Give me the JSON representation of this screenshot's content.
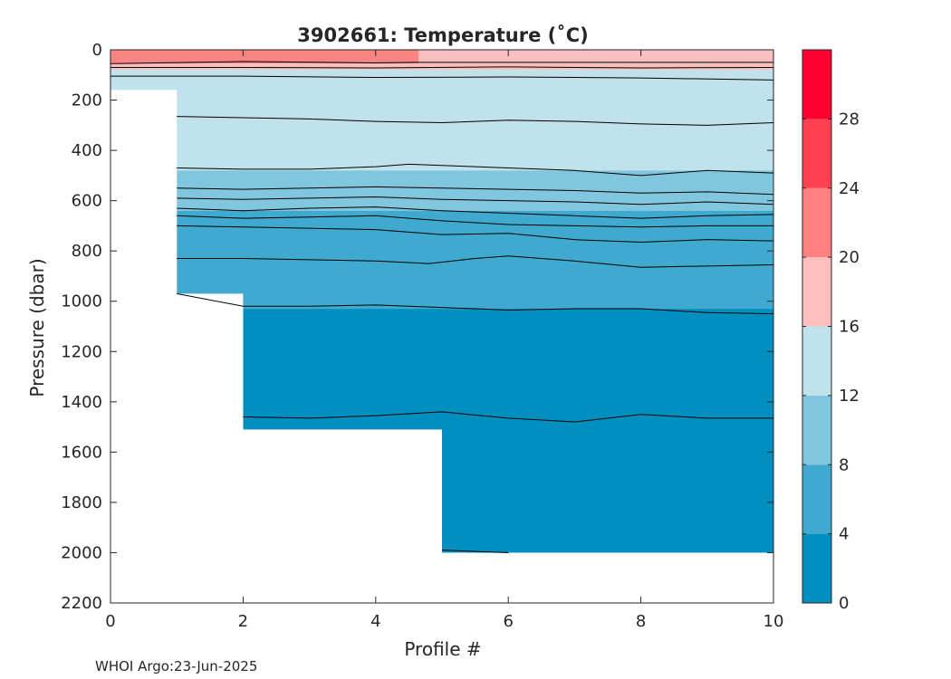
{
  "chart_data": {
    "type": "heatmap",
    "title": "3902661:  Temperature (˚C)",
    "xlabel": "Profile #",
    "ylabel": "Pressure (dbar)",
    "xlim": [
      0,
      10
    ],
    "ylim": [
      2200,
      0
    ],
    "y_reversed": true,
    "x_ticks": [
      0,
      2,
      4,
      6,
      8,
      10
    ],
    "x_tick_labels": [
      "0",
      "2",
      "4",
      "6",
      "8",
      "10"
    ],
    "y_ticks": [
      0,
      200,
      400,
      600,
      800,
      1000,
      1200,
      1400,
      1600,
      1800,
      2000,
      2200
    ],
    "y_tick_labels": [
      "0",
      "200",
      "400",
      "600",
      "800",
      "1000",
      "1200",
      "1400",
      "1600",
      "1800",
      "2000",
      "2200"
    ],
    "profile_max_pressure": [
      {
        "x": 0,
        "p": 160
      },
      {
        "x": 1,
        "p": 970
      },
      {
        "x": 2,
        "p": 1510
      },
      {
        "x": 5,
        "p": 2000
      },
      {
        "x": 10,
        "p": 2000
      }
    ],
    "temperature_bands": [
      {
        "min": 0,
        "max": 4,
        "color": "#008fbf"
      },
      {
        "min": 4,
        "max": 8,
        "color": "#40a9cf"
      },
      {
        "min": 8,
        "max": 12,
        "color": "#80c6de"
      },
      {
        "min": 12,
        "max": 16,
        "color": "#bfe2ed"
      },
      {
        "min": 16,
        "max": 20,
        "color": "#ffbfbf"
      },
      {
        "min": 20,
        "max": 24,
        "color": "#ff8080"
      },
      {
        "min": 24,
        "max": 28,
        "color": "#ff4050"
      },
      {
        "min": 28,
        "max": 32,
        "color": "#ff0030"
      }
    ],
    "filled_regions": [
      {
        "temp_range": "20-24",
        "color": "#f88484",
        "x": [
          0,
          4.65
        ],
        "p_top": 0,
        "p_bottom": 55
      },
      {
        "temp_range": "16-20",
        "color": "#f9c0c0",
        "x": [
          4.65,
          10
        ],
        "p_top": 0,
        "p_bottom": 80
      },
      {
        "temp_range": "16-20",
        "color": "#f9c0c0",
        "x": [
          0,
          4.65
        ],
        "p_top": 55,
        "p_bottom": 80
      },
      {
        "temp_range": "12-16",
        "color": "#bfe2ed",
        "x": [
          0,
          10
        ],
        "p_top": 80,
        "p_bottom": 480
      },
      {
        "temp_range": "8-12",
        "color": "#80c6de",
        "x": [
          1,
          10
        ],
        "p_top": 480,
        "p_bottom": 640
      },
      {
        "temp_range": "4-8",
        "color": "#40a9cf",
        "x": [
          1,
          10
        ],
        "p_top": 640,
        "p_bottom": 1030
      },
      {
        "temp_range": "0-4",
        "color": "#008fbf",
        "x": [
          2,
          10
        ],
        "p_top": 1030,
        "p_bottom": 2000
      }
    ],
    "contour_lines": [
      {
        "x": [
          0,
          2,
          4,
          4.6,
          10
        ],
        "p": [
          55,
          47,
          52,
          50,
          50
        ]
      },
      {
        "x": [
          0,
          2,
          4,
          6,
          8,
          10
        ],
        "p": [
          70,
          70,
          72,
          68,
          72,
          70
        ]
      },
      {
        "x": [
          0,
          2,
          4,
          6,
          8,
          10
        ],
        "p": [
          105,
          105,
          110,
          108,
          112,
          120
        ]
      },
      {
        "x": [
          1,
          2,
          3,
          4,
          5,
          6,
          7,
          8,
          9,
          10
        ],
        "p": [
          265,
          270,
          275,
          285,
          290,
          280,
          285,
          295,
          300,
          290
        ]
      },
      {
        "x": [
          1,
          2,
          3,
          4,
          4.5,
          5,
          6,
          7,
          8,
          9,
          10
        ],
        "p": [
          470,
          475,
          475,
          465,
          455,
          460,
          470,
          480,
          500,
          480,
          490
        ]
      },
      {
        "x": [
          1,
          2,
          3,
          4,
          5,
          6,
          7,
          8,
          9,
          10
        ],
        "p": [
          550,
          555,
          550,
          545,
          550,
          555,
          560,
          570,
          565,
          575
        ]
      },
      {
        "x": [
          1,
          2,
          3,
          4,
          5,
          6,
          7,
          8,
          9,
          10
        ],
        "p": [
          590,
          595,
          590,
          585,
          595,
          600,
          605,
          615,
          605,
          615
        ]
      },
      {
        "x": [
          1,
          2,
          3,
          4,
          5,
          6,
          7,
          8,
          9,
          10
        ],
        "p": [
          630,
          640,
          630,
          625,
          640,
          650,
          660,
          670,
          660,
          655
        ]
      },
      {
        "x": [
          1,
          2,
          3,
          4,
          5,
          6,
          7,
          8,
          9,
          10
        ],
        "p": [
          660,
          670,
          665,
          660,
          680,
          695,
          700,
          705,
          700,
          700
        ]
      },
      {
        "x": [
          1,
          2,
          3,
          4,
          5,
          6,
          7,
          8,
          9,
          10
        ],
        "p": [
          700,
          705,
          710,
          715,
          735,
          730,
          755,
          765,
          755,
          760
        ]
      },
      {
        "x": [
          1,
          2,
          3,
          4,
          4.8,
          5.5,
          6,
          7,
          8,
          9,
          10
        ],
        "p": [
          830,
          830,
          835,
          840,
          850,
          830,
          820,
          840,
          865,
          860,
          855
        ]
      },
      {
        "x": [
          1,
          2,
          3,
          4,
          5,
          6,
          7,
          8,
          9,
          10
        ],
        "p": [
          970,
          1020,
          1020,
          1015,
          1025,
          1035,
          1030,
          1030,
          1045,
          1050
        ]
      },
      {
        "x": [
          2,
          3,
          4,
          5,
          6,
          7,
          8,
          9,
          10
        ],
        "p": [
          1460,
          1465,
          1455,
          1440,
          1465,
          1480,
          1450,
          1465,
          1465
        ]
      },
      {
        "x": [
          5,
          5.5,
          6
        ],
        "p": [
          1990,
          1995,
          2000
        ]
      }
    ],
    "colorbar": {
      "limits": [
        0,
        32
      ],
      "ticks": [
        0,
        4,
        8,
        12,
        16,
        20,
        24,
        28
      ],
      "tick_labels": [
        "0",
        "4",
        "8",
        "12",
        "16",
        "20",
        "24",
        "28"
      ]
    },
    "footer": "WHOI Argo:23-Jun-2025"
  }
}
